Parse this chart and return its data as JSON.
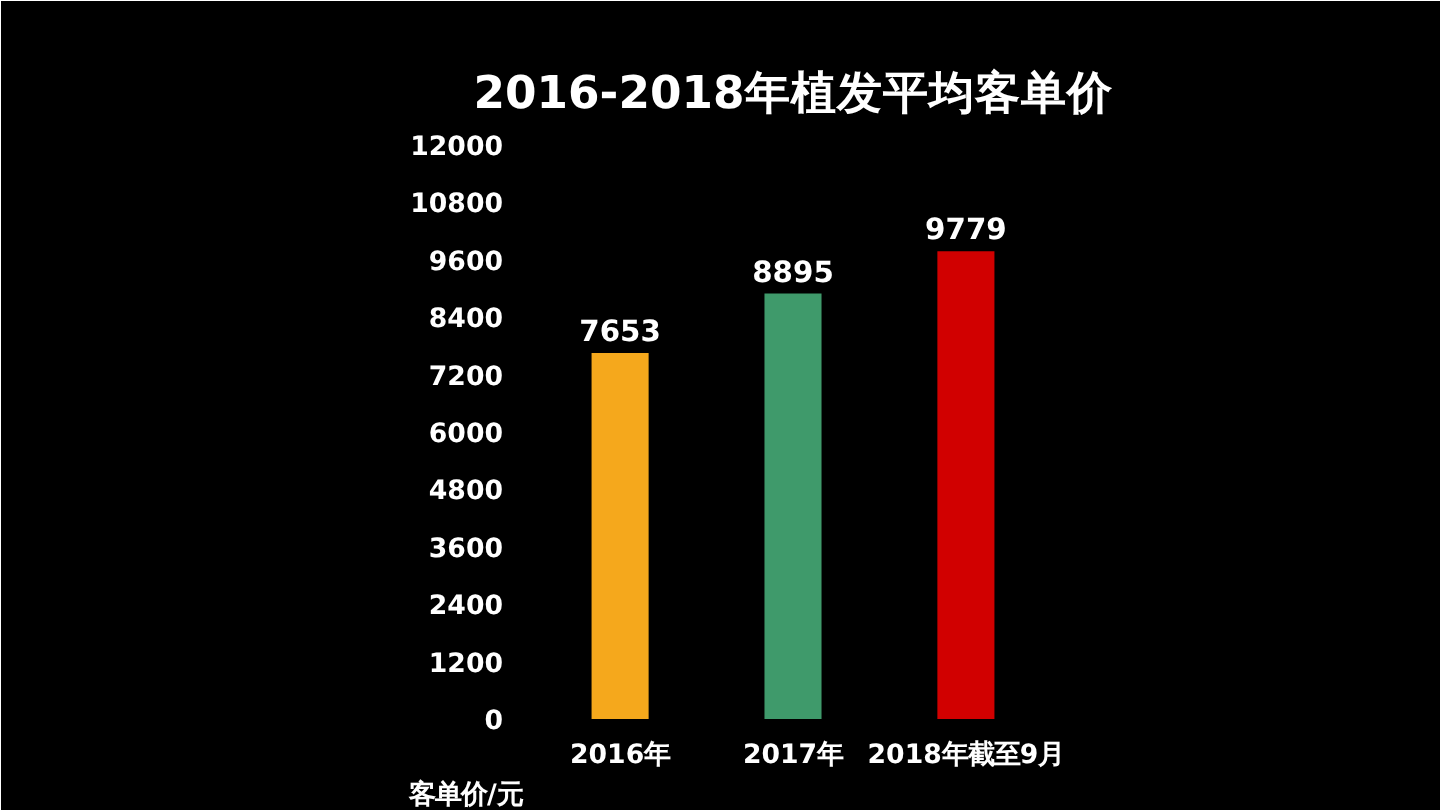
{
  "chart_data": {
    "type": "bar",
    "title": "2016-2018年植发平均客单价",
    "ylabel": "客单价/元",
    "categories": [
      "2016年",
      "2017年",
      "2018年截至9月"
    ],
    "values": [
      7653,
      8895,
      9779
    ],
    "colors": [
      "#f5a81c",
      "#3f9a6b",
      "#d10000"
    ],
    "ylim": [
      0,
      12000
    ],
    "yticks": [
      0,
      1200,
      2400,
      3600,
      4800,
      6000,
      7200,
      8400,
      9600,
      10800,
      12000
    ],
    "grid": false,
    "data_labels": true
  }
}
